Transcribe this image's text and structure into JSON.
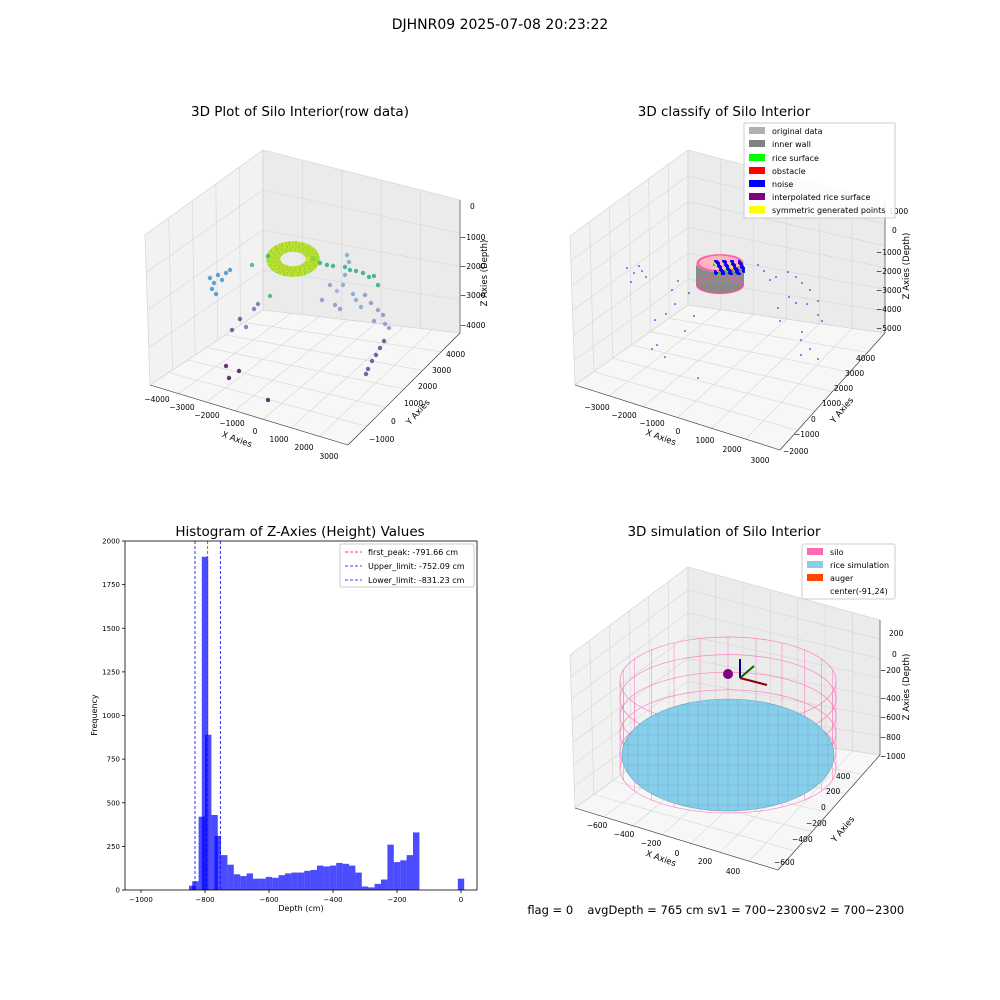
{
  "figure": {
    "suptitle": "DJHNR09 2025-07-08 20:23:22",
    "status": {
      "flag": "flag = 0",
      "avg": "avgDepth = 765 cm",
      "sv1": "sv1 = 700~2300",
      "sv2": "sv2 = 700~2300"
    }
  },
  "chart_data": [
    {
      "type": "scatter",
      "projection": "3d",
      "title": "3D Plot of Silo Interior(row data)",
      "xlabel": "X Axies",
      "ylabel": "Y Axies",
      "zlabel": "Z Axies (Depth)",
      "xticks": [
        "−4000",
        "−3000",
        "−2000",
        "−1000",
        "0",
        "1000",
        "2000",
        "3000"
      ],
      "yticks": [
        "−1000",
        "0",
        "1000",
        "2000",
        "3000",
        "4000"
      ],
      "zticks": [
        "−4000",
        "−3000",
        "−2000",
        "−1000",
        "0"
      ],
      "xlim": [
        -4000,
        3000
      ],
      "ylim": [
        -1000,
        4000
      ],
      "zlim": [
        -4500,
        0
      ],
      "colormap": "viridis",
      "description_series": [
        {
          "name": "",
          "x": [
            -400,
            -300,
            -200,
            -100,
            0,
            100,
            200,
            -300,
            300
          ],
          "y": [
            1500,
            1600,
            1700,
            1500,
            1600,
            1700,
            1500,
            1400,
            1600
          ],
          "z": [
            -1900,
            -1900,
            -1850,
            -1900,
            -1900,
            -1850,
            -1900,
            -1950,
            -1900
          ]
        }
      ]
    },
    {
      "type": "scatter",
      "projection": "3d",
      "title": "3D classify of Silo Interior",
      "xlabel": "X Axies",
      "ylabel": "Y Axies",
      "zlabel": "Z Axies (Depth)",
      "xticks": [
        "−3000",
        "−2000",
        "−1000",
        "0",
        "1000",
        "2000",
        "3000"
      ],
      "yticks": [
        "−2000",
        "−1000",
        "0",
        "1000",
        "2000",
        "3000",
        "4000"
      ],
      "zticks": [
        "−5000",
        "−4000",
        "−3000",
        "−2000",
        "−1000",
        "0",
        "1000"
      ],
      "legend_position": "top-right",
      "legend": [
        {
          "label": "original data",
          "color": "#b0b0b0"
        },
        {
          "label": "inner wall",
          "color": "#808080"
        },
        {
          "label": "rice surface",
          "color": "#00ff00"
        },
        {
          "label": "obstacle",
          "color": "#ff0000"
        },
        {
          "label": "noise",
          "color": "#0000ff"
        },
        {
          "label": "interpolated rice surface",
          "color": "#800080"
        },
        {
          "label": "symmetric generated points",
          "color": "#ffff00"
        }
      ]
    },
    {
      "type": "bar",
      "title": "Histogram of Z-Axies (Height) Values",
      "xlabel": "Depth (cm)",
      "ylabel": "Frequency",
      "xlim": [
        -1050,
        50
      ],
      "ylim": [
        0,
        2000
      ],
      "xticks": [
        -1000,
        -800,
        -600,
        -400,
        -200,
        0
      ],
      "xtick_labels": [
        "−1000",
        "−800",
        "−600",
        "−400",
        "−200",
        "0"
      ],
      "yticks": [
        0,
        250,
        500,
        750,
        1000,
        1250,
        1500,
        1750,
        2000
      ],
      "bar_color": "#0000ff",
      "bin_width": 20,
      "bins": [
        {
          "x": -840,
          "value": 25
        },
        {
          "x": -830,
          "value": 50
        },
        {
          "x": -810,
          "value": 420
        },
        {
          "x": -800,
          "value": 1910
        },
        {
          "x": -790,
          "value": 890
        },
        {
          "x": -770,
          "value": 430
        },
        {
          "x": -760,
          "value": 310
        },
        {
          "x": -740,
          "value": 200
        },
        {
          "x": -720,
          "value": 145
        },
        {
          "x": -700,
          "value": 90
        },
        {
          "x": -680,
          "value": 80
        },
        {
          "x": -660,
          "value": 95
        },
        {
          "x": -640,
          "value": 65
        },
        {
          "x": -620,
          "value": 65
        },
        {
          "x": -600,
          "value": 75
        },
        {
          "x": -580,
          "value": 70
        },
        {
          "x": -560,
          "value": 85
        },
        {
          "x": -540,
          "value": 95
        },
        {
          "x": -520,
          "value": 100
        },
        {
          "x": -500,
          "value": 100
        },
        {
          "x": -480,
          "value": 110
        },
        {
          "x": -460,
          "value": 115
        },
        {
          "x": -440,
          "value": 140
        },
        {
          "x": -420,
          "value": 135
        },
        {
          "x": -400,
          "value": 140
        },
        {
          "x": -380,
          "value": 155
        },
        {
          "x": -360,
          "value": 150
        },
        {
          "x": -340,
          "value": 140
        },
        {
          "x": -320,
          "value": 100
        },
        {
          "x": -300,
          "value": 20
        },
        {
          "x": -280,
          "value": 15
        },
        {
          "x": -260,
          "value": 35
        },
        {
          "x": -240,
          "value": 60
        },
        {
          "x": -220,
          "value": 260
        },
        {
          "x": -200,
          "value": 160
        },
        {
          "x": -180,
          "value": 170
        },
        {
          "x": -160,
          "value": 200
        },
        {
          "x": -140,
          "value": 330
        },
        {
          "x": -120,
          "value": 0
        },
        {
          "x": -100,
          "value": 0
        },
        {
          "x": -80,
          "value": 0
        },
        {
          "x": -60,
          "value": 0
        },
        {
          "x": -40,
          "value": 0
        },
        {
          "x": -20,
          "value": 0
        },
        {
          "x": 0,
          "value": 65
        }
      ],
      "vlines": [
        {
          "x": -791.66,
          "color": "#ff0000",
          "label": "first_peak: -791.66 cm"
        },
        {
          "x": -752.09,
          "color": "#0000ff",
          "label": "Upper_limit: -752.09 cm"
        },
        {
          "x": -831.23,
          "color": "#0000ff",
          "label": "Lower_limit: -831.23 cm"
        }
      ],
      "legend_position": "top-right"
    },
    {
      "type": "scatter",
      "projection": "3d",
      "title": "3D simulation of Silo Interior",
      "xlabel": "X Axies",
      "ylabel": "Y Axies",
      "zlabel": "Z Axies (Depth)",
      "xticks": [
        "−600",
        "−400",
        "−200",
        "0",
        "200",
        "400"
      ],
      "yticks": [
        "−600",
        "−400",
        "−200",
        "0",
        "200",
        "400",
        "600"
      ],
      "zticks": [
        "−1000",
        "−800",
        "−600",
        "−400",
        "−200",
        "0",
        "200"
      ],
      "legend_position": "top-right",
      "legend": [
        {
          "label": "silo",
          "color": "#ff69b4"
        },
        {
          "label": "rice simulation",
          "color": "#87ceeb"
        },
        {
          "label": "auger",
          "color": "#ff4500"
        },
        {
          "label": "center(-91,24)",
          "color": "none"
        }
      ]
    }
  ]
}
